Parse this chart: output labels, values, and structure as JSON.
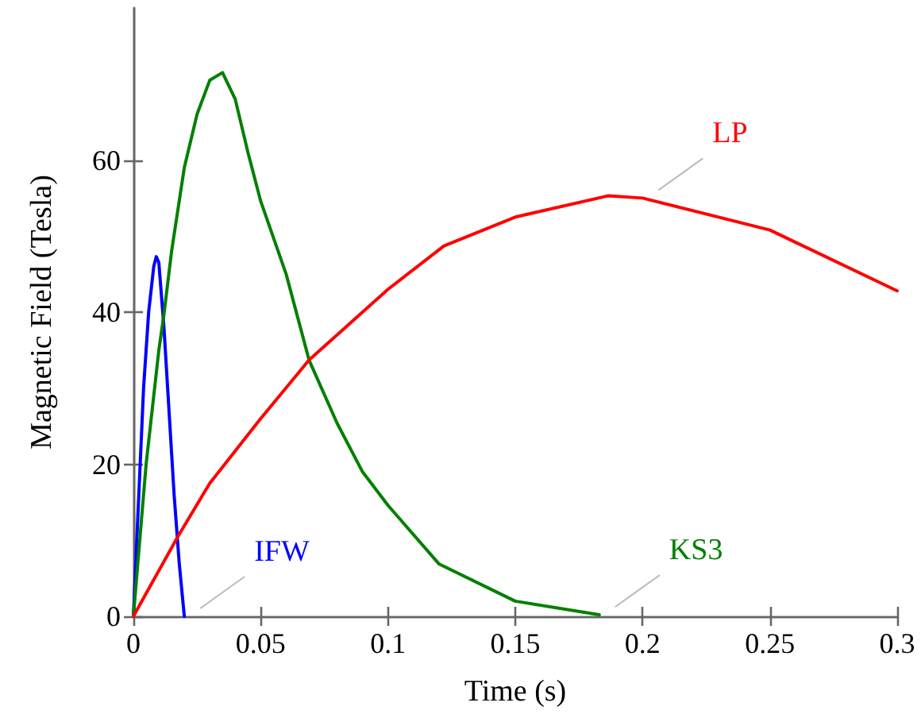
{
  "chart_data": {
    "type": "line",
    "xlabel": "Time (s)",
    "ylabel": "Magnetic Field (Tesla)",
    "xlim": [
      0,
      0.3
    ],
    "xticks": [
      0,
      0.05,
      0.1,
      0.15,
      0.2,
      0.25,
      0.3
    ],
    "ylim": [
      0,
      80
    ],
    "yticks": [
      0,
      20,
      40,
      60
    ],
    "grid": false,
    "legend": false,
    "marker": "none",
    "line_style": "solid",
    "series": [
      {
        "name": "IFW",
        "color": "#0000ff",
        "x": [
          0,
          0.002,
          0.004,
          0.006,
          0.008,
          0.009,
          0.01,
          0.012,
          0.014,
          0.016,
          0.018,
          0.02
        ],
        "values": [
          0,
          15,
          30,
          40,
          46,
          47.3,
          46.5,
          38,
          27,
          16,
          7,
          0
        ]
      },
      {
        "name": "KS3",
        "color": "#008000",
        "x": [
          0,
          0.005,
          0.01,
          0.012,
          0.015,
          0.02,
          0.025,
          0.03,
          0.035,
          0.04,
          0.045,
          0.05,
          0.06,
          0.069,
          0.08,
          0.09,
          0.1,
          0.12,
          0.15,
          0.183
        ],
        "values": [
          0,
          20,
          35,
          39.7,
          48,
          59,
          66,
          70.5,
          71.5,
          68,
          61,
          54.6,
          45,
          33.7,
          25.4,
          19,
          14.6,
          6.9,
          2,
          0.2
        ]
      },
      {
        "name": "LP",
        "color": "#ff0000",
        "x": [
          0,
          0.0173,
          0.03,
          0.05,
          0.069,
          0.1,
          0.122,
          0.15,
          0.1865,
          0.2,
          0.25,
          0.3
        ],
        "values": [
          0,
          10.4,
          17.5,
          26,
          33.7,
          43,
          48.7,
          52.5,
          55.3,
          55,
          50.8,
          42.8
        ]
      }
    ]
  }
}
